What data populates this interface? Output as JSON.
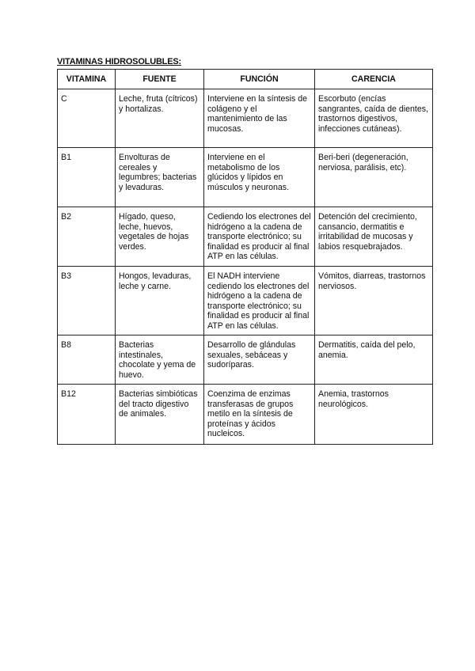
{
  "title": "VITAMINAS HIDROSOLUBLES:",
  "headers": [
    "VITAMINA",
    "FUENTE",
    "FUNCIÓN",
    "CARENCIA"
  ],
  "rows": [
    {
      "vitamina": "C",
      "fuente": "Leche, fruta (cítricos) y hortalizas.",
      "funcion": "Interviene en la síntesis de colágeno y el mantenimiento de las mucosas.",
      "carencia": "Escorbuto (encías sangrantes, caída de dientes, trastornos digestivos, infecciones cutáneas)."
    },
    {
      "vitamina": "B1",
      "fuente": "Envolturas de cereales y legumbres; bacterias y levaduras.",
      "funcion": "Interviene en el metabolismo de los glúcidos y lípidos en músculos y neuronas.",
      "carencia": "Beri-beri (degeneración, nerviosa, parálisis, etc)."
    },
    {
      "vitamina": "B2",
      "fuente": "Hígado, queso, leche, huevos, vegetales de hojas verdes.",
      "funcion": "Cediendo los electrones del hidrógeno a la cadena de transporte electrónico; su finalidad es producir al final ATP en las células.",
      "carencia": "Detención del crecimiento, cansancio, dermatitis e irritabilidad de mucosas y labios resquebrajados."
    },
    {
      "vitamina": "B3",
      "fuente": "Hongos, levaduras, leche y carne.",
      "funcion": "El NADH interviene cediendo los electrones del hidrógeno a la cadena de transporte electrónico; su finalidad es producir al final ATP en las células.",
      "carencia": "Vómitos, diarreas, trastornos nerviosos."
    },
    {
      "vitamina": "B8",
      "fuente": "Bacterias intestinales, chocolate y yema de huevo.",
      "funcion": "Desarrollo de glándulas sexuales, sebáceas y sudoríparas.",
      "carencia": "Dermatitis, caída del pelo, anemia."
    },
    {
      "vitamina": "B12",
      "fuente": "Bacterias simbióticas del tracto digestivo de animales.",
      "funcion": "Coenzima de enzimas transferasas de grupos metilo en la síntesis de proteínas y ácidos nucleicos.",
      "carencia": "Anemia, trastornos neurológicos."
    }
  ]
}
